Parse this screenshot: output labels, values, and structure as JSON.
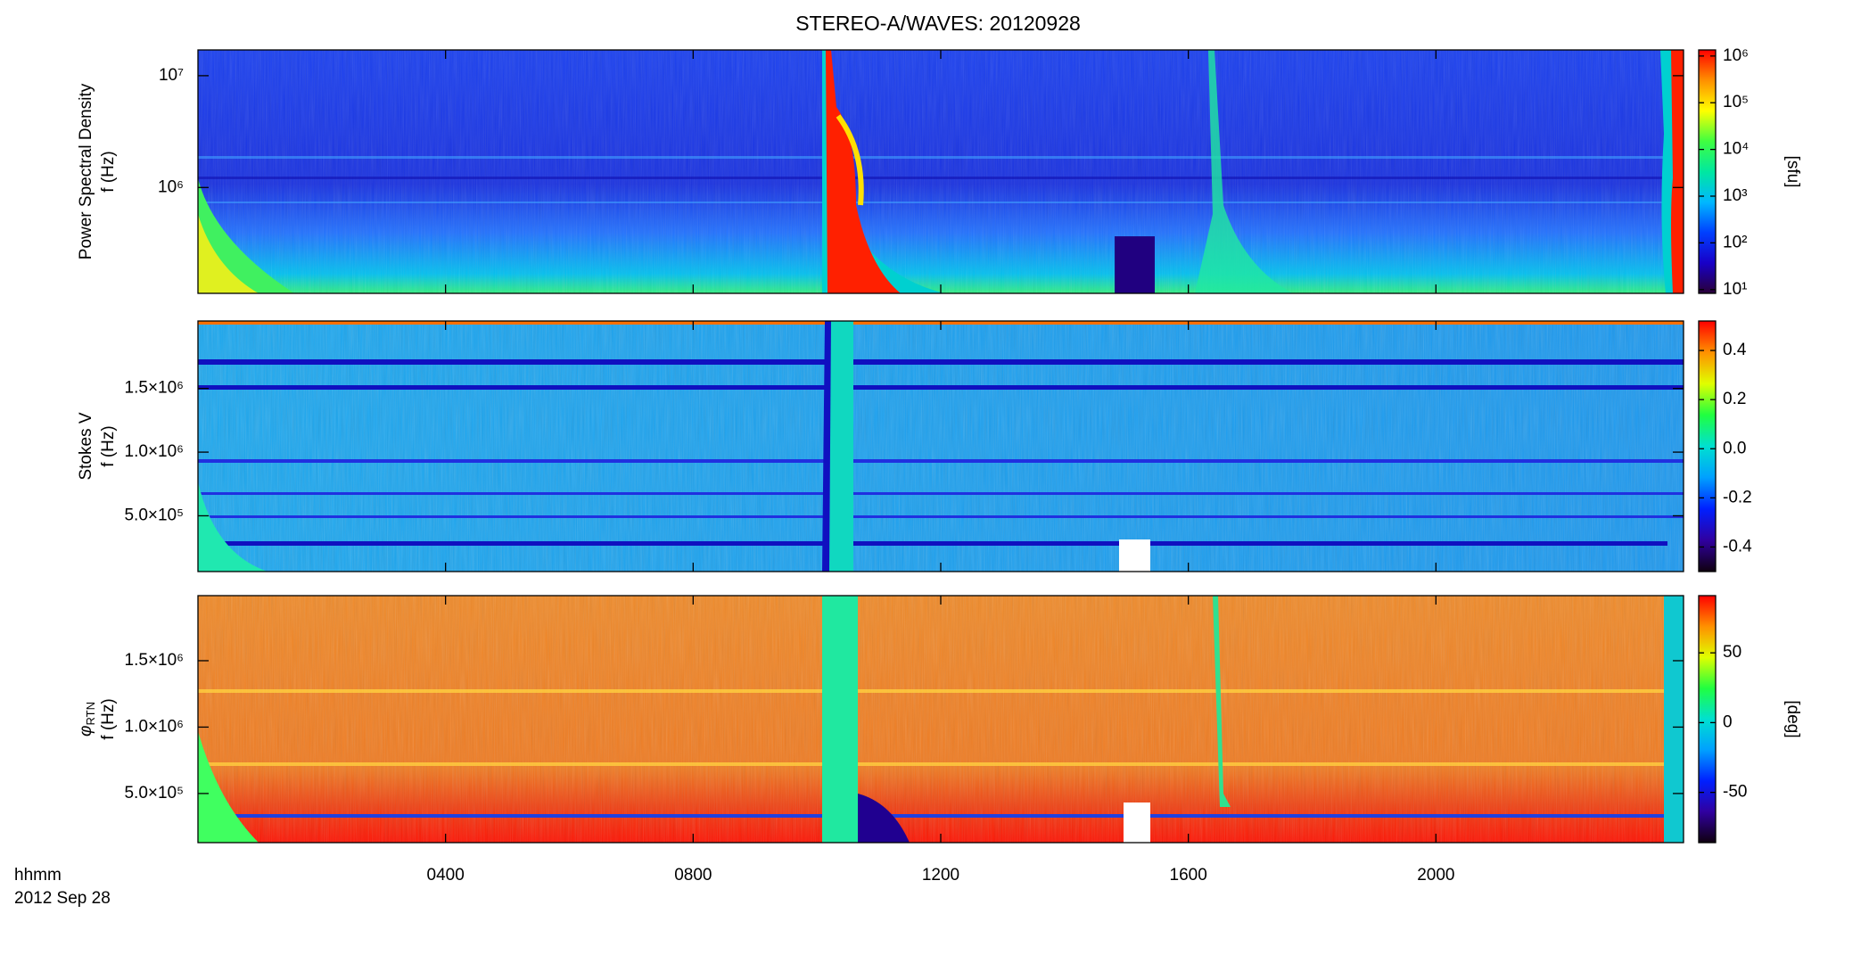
{
  "chart_data": [
    {
      "type": "heatmap",
      "title": "STEREO-A/WAVES: 20120928",
      "ylabel_title": "Power Spectral Density",
      "ylabel": "f (Hz)",
      "log_scale": true,
      "ylim": [
        113000,
        17000000
      ],
      "yticks": [
        {
          "value": 1000000,
          "label": "10⁶"
        },
        {
          "value": 10000000,
          "label": "10⁷"
        }
      ],
      "xlim": [
        0,
        24
      ],
      "xticks": [
        4,
        8,
        12,
        16,
        20
      ],
      "colorbar_log": true,
      "colorbar_lim": [
        8.3,
        1350000
      ],
      "colorbar_ticks": [
        {
          "value": 10,
          "label": "10¹"
        },
        {
          "value": 100,
          "label": "10²"
        },
        {
          "value": 1000,
          "label": "10³"
        },
        {
          "value": 10000,
          "label": "10⁴"
        },
        {
          "value": 100000,
          "label": "10⁵"
        },
        {
          "value": 1000000,
          "label": "10⁶"
        }
      ],
      "colorbar_label": "[sfu]",
      "colormap": [
        "#2a0038",
        "#1800c8",
        "#0040ff",
        "#00b8ff",
        "#00e8a0",
        "#40ff40",
        "#ffff00",
        "#ff9000",
        "#ff0000"
      ]
    },
    {
      "type": "heatmap",
      "ylabel_title": "Stokes V",
      "ylabel": "f (Hz)",
      "log_scale": false,
      "ylim": [
        62000,
        2030000
      ],
      "yticks": [
        {
          "value": 500000,
          "label": "5.0×10⁵"
        },
        {
          "value": 1000000,
          "label": "1.0×10⁶"
        },
        {
          "value": 1500000,
          "label": "1.5×10⁶"
        }
      ],
      "xlim": [
        0,
        24
      ],
      "xticks": [
        4,
        8,
        12,
        16,
        20
      ],
      "colorbar_log": false,
      "colorbar_lim": [
        -0.5,
        0.52
      ],
      "colorbar_ticks": [
        -0.4,
        -0.2,
        {
          "value": 0,
          "label": "0.0"
        },
        0.2,
        0.4
      ],
      "colormap": [
        "#100010",
        "#3000a0",
        "#0020ff",
        "#00a0ff",
        "#00e0d0",
        "#20ff40",
        "#e0ff00",
        "#ff9000",
        "#ff0000"
      ]
    },
    {
      "type": "heatmap",
      "ylabel_title": "φ",
      "ylabel_title_sub": "RTN",
      "ylabel": "f (Hz)",
      "log_scale": false,
      "ylim": [
        130000,
        1990000
      ],
      "yticks": [
        {
          "value": 500000,
          "label": "5.0×10⁵"
        },
        {
          "value": 1000000,
          "label": "1.0×10⁶"
        },
        {
          "value": 1500000,
          "label": "1.5×10⁶"
        }
      ],
      "xlim": [
        0,
        24
      ],
      "xticks": [
        {
          "value": 4,
          "label": "0400"
        },
        {
          "value": 8,
          "label": "0800"
        },
        {
          "value": 12,
          "label": "1200"
        },
        {
          "value": 16,
          "label": "1600"
        },
        {
          "value": 20,
          "label": "2000"
        }
      ],
      "xlabel": "hhmm",
      "date": "2012 Sep 28",
      "colorbar_log": false,
      "colorbar_lim": [
        -86,
        91
      ],
      "colorbar_ticks": [
        -50,
        0,
        50
      ],
      "colorbar_label": "[deg]",
      "colormap": [
        "#100010",
        "#3000a0",
        "#0020ff",
        "#00a0ff",
        "#00e0d0",
        "#20ff40",
        "#e0ff00",
        "#ff9000",
        "#ff0000"
      ]
    }
  ]
}
